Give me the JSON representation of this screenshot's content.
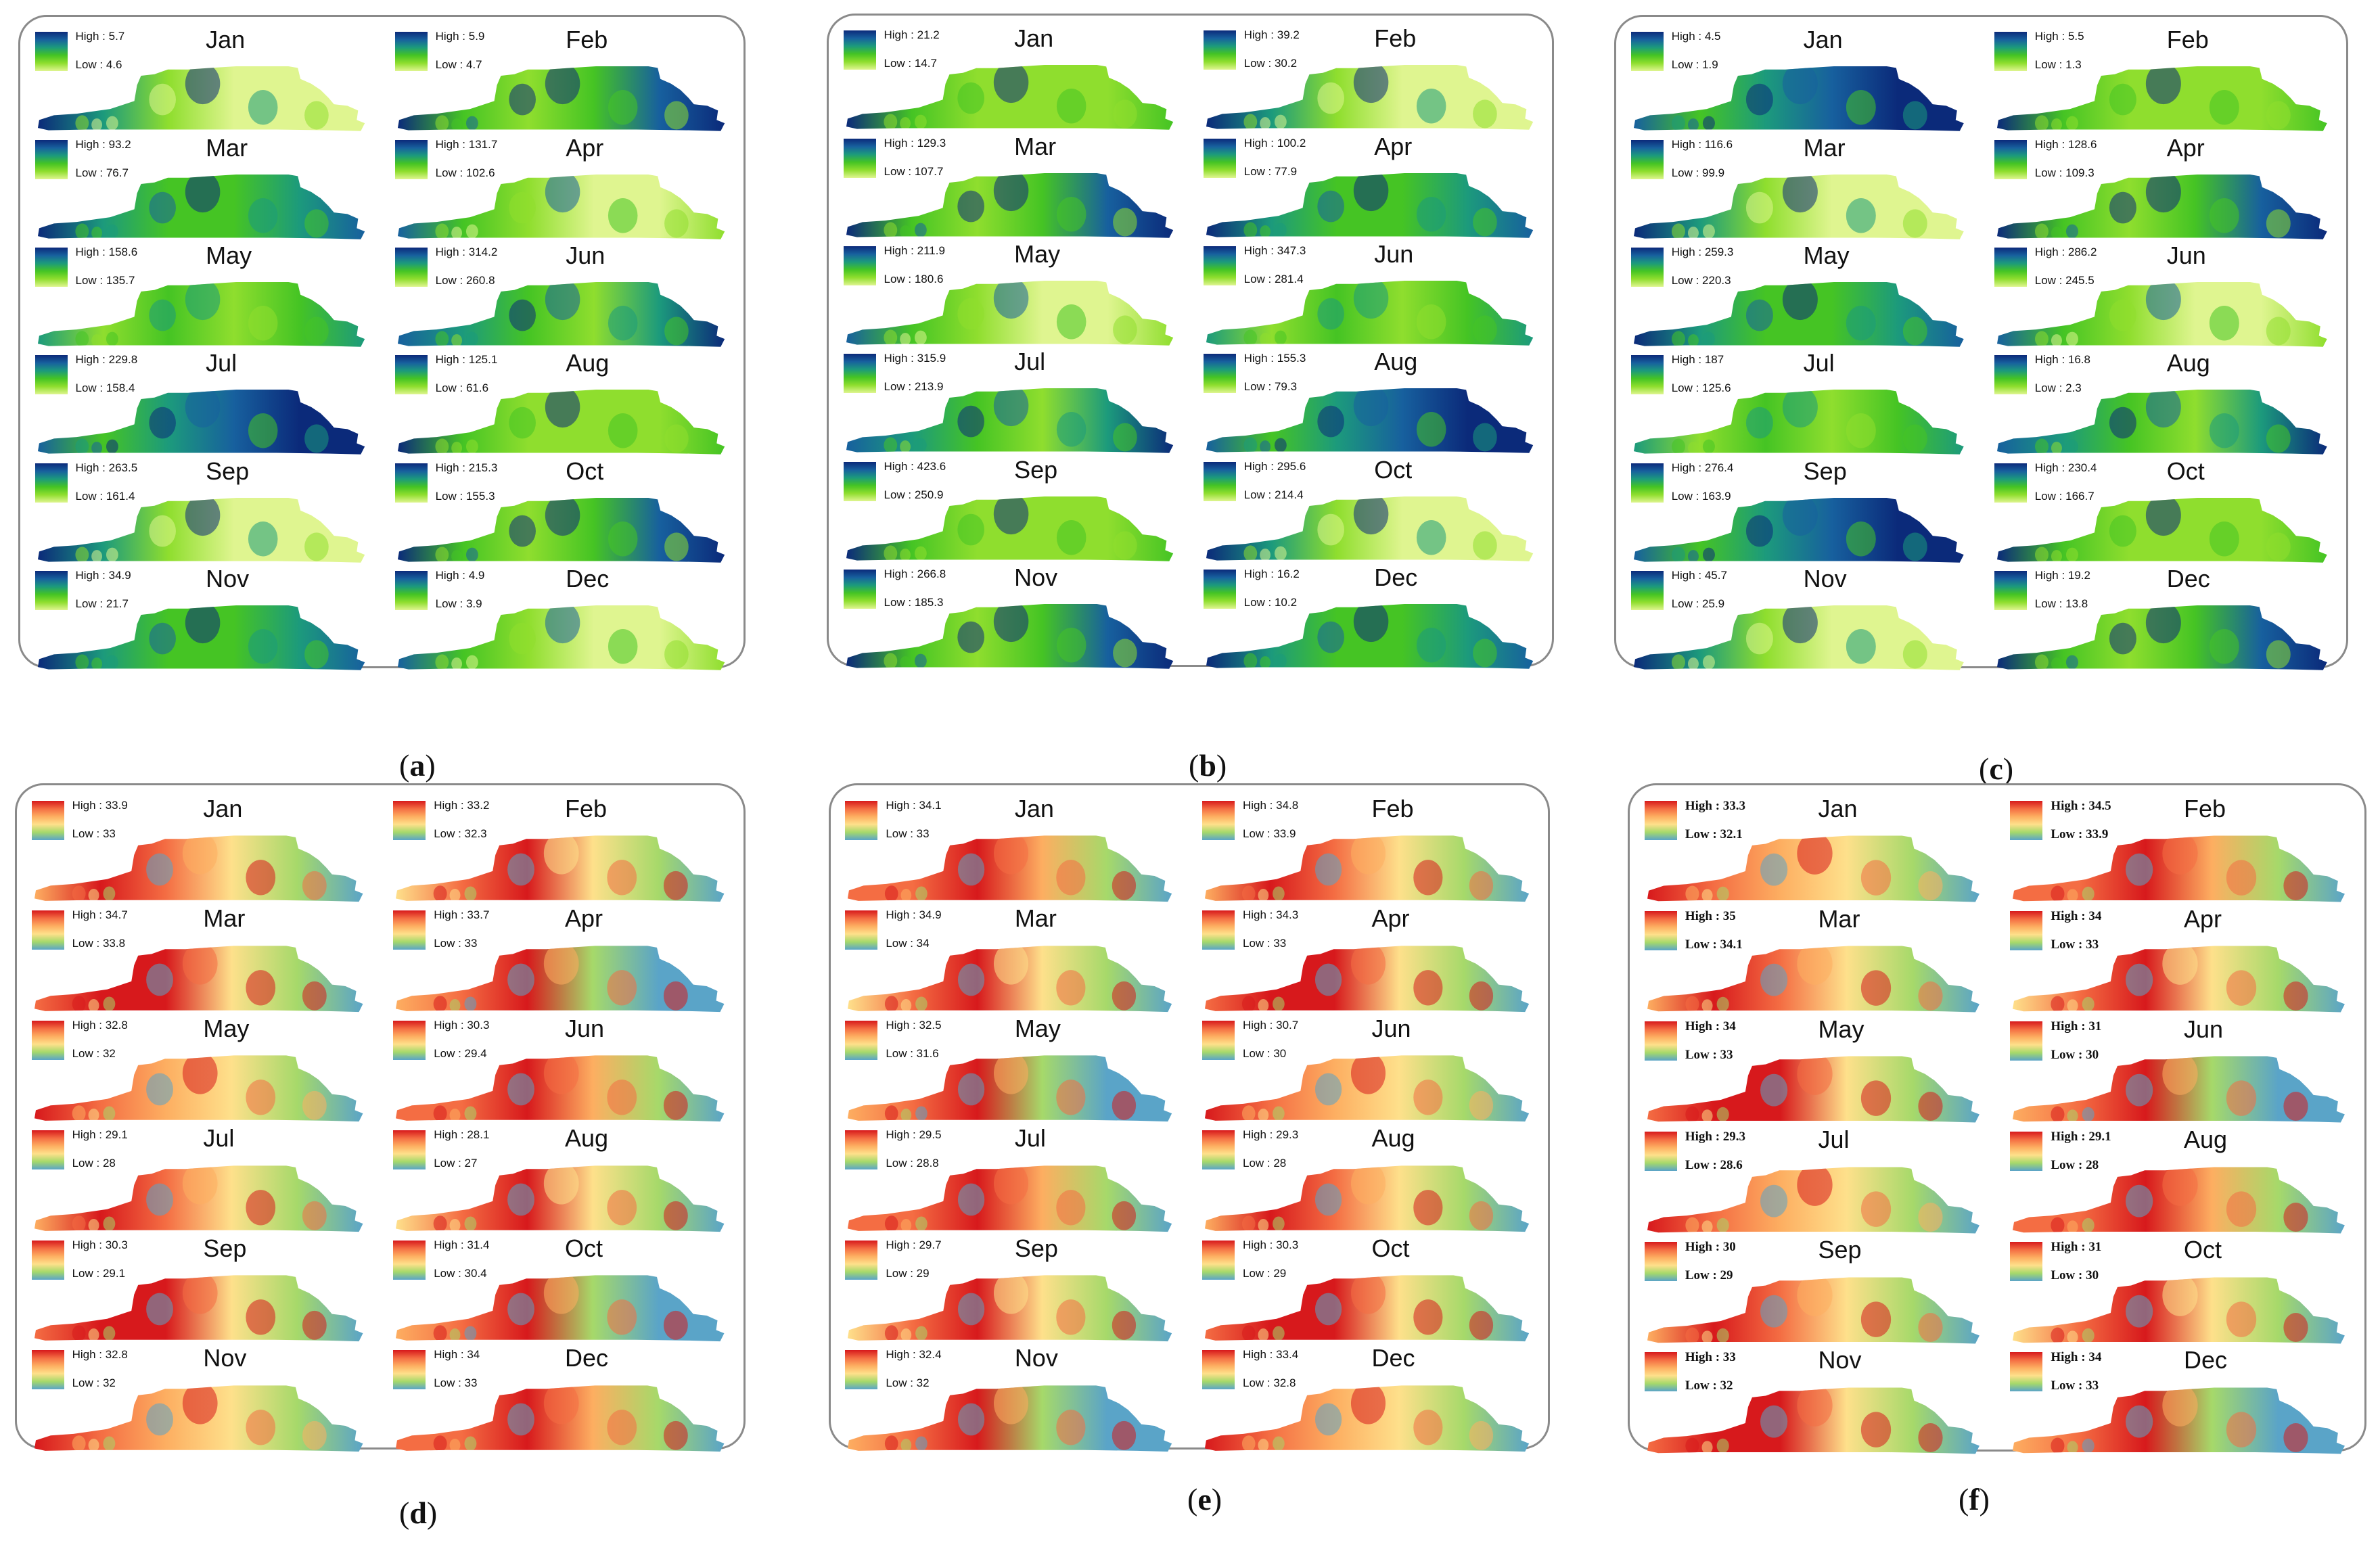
{
  "figure": {
    "panels": [
      {
        "label": "a",
        "caption_open": "(",
        "caption_close": ")",
        "ramp": "greenblue",
        "style": "sans",
        "months": [
          {
            "month": "Jan",
            "high": "High : 5.7",
            "low": "Low : 4.6"
          },
          {
            "month": "Feb",
            "high": "High : 5.9",
            "low": "Low : 4.7"
          },
          {
            "month": "Mar",
            "high": "High : 93.2",
            "low": "Low : 76.7"
          },
          {
            "month": "Apr",
            "high": "High : 131.7",
            "low": "Low : 102.6"
          },
          {
            "month": "May",
            "high": "High : 158.6",
            "low": "Low : 135.7"
          },
          {
            "month": "Jun",
            "high": "High : 314.2",
            "low": "Low : 260.8"
          },
          {
            "month": "Jul",
            "high": "High : 229.8",
            "low": "Low : 158.4"
          },
          {
            "month": "Aug",
            "high": "High : 125.1",
            "low": "Low : 61.6"
          },
          {
            "month": "Sep",
            "high": "High : 263.5",
            "low": "Low : 161.4"
          },
          {
            "month": "Oct",
            "high": "High : 215.3",
            "low": "Low : 155.3"
          },
          {
            "month": "Nov",
            "high": "High : 34.9",
            "low": "Low : 21.7"
          },
          {
            "month": "Dec",
            "high": "High : 4.9",
            "low": "Low : 3.9"
          }
        ]
      },
      {
        "label": "b",
        "caption_open": "(",
        "caption_close": ")",
        "ramp": "greenblue",
        "style": "sans",
        "months": [
          {
            "month": "Jan",
            "high": "High : 21.2",
            "low": "Low : 14.7"
          },
          {
            "month": "Feb",
            "high": "High : 39.2",
            "low": "Low : 30.2"
          },
          {
            "month": "Mar",
            "high": "High : 129.3",
            "low": "Low : 107.7"
          },
          {
            "month": "Apr",
            "high": "High : 100.2",
            "low": "Low : 77.9"
          },
          {
            "month": "May",
            "high": "High : 211.9",
            "low": "Low : 180.6"
          },
          {
            "month": "Jun",
            "high": "High : 347.3",
            "low": "Low : 281.4"
          },
          {
            "month": "Jul",
            "high": "High : 315.9",
            "low": "Low : 213.9"
          },
          {
            "month": "Aug",
            "high": "High : 155.3",
            "low": "Low : 79.3"
          },
          {
            "month": "Sep",
            "high": "High : 423.6",
            "low": "Low : 250.9"
          },
          {
            "month": "Oct",
            "high": "High : 295.6",
            "low": "Low : 214.4"
          },
          {
            "month": "Nov",
            "high": "High : 266.8",
            "low": "Low : 185.3"
          },
          {
            "month": "Dec",
            "high": "High : 16.2",
            "low": "Low : 10.2"
          }
        ]
      },
      {
        "label": "c",
        "caption_open": "(",
        "caption_close": ")",
        "ramp": "greenblue",
        "style": "sans",
        "months": [
          {
            "month": "Jan",
            "high": "High : 4.5",
            "low": "Low : 1.9"
          },
          {
            "month": "Feb",
            "high": "High : 5.5",
            "low": "Low : 1.3"
          },
          {
            "month": "Mar",
            "high": "High : 116.6",
            "low": "Low : 99.9"
          },
          {
            "month": "Apr",
            "high": "High : 128.6",
            "low": "Low : 109.3"
          },
          {
            "month": "May",
            "high": "High : 259.3",
            "low": "Low : 220.3"
          },
          {
            "month": "Jun",
            "high": "High : 286.2",
            "low": "Low : 245.5"
          },
          {
            "month": "Jul",
            "high": "High : 187",
            "low": "Low : 125.6"
          },
          {
            "month": "Aug",
            "high": "High : 16.8",
            "low": "Low : 2.3"
          },
          {
            "month": "Sep",
            "high": "High : 276.4",
            "low": "Low : 163.9"
          },
          {
            "month": "Oct",
            "high": "High : 230.4",
            "low": "Low : 166.7"
          },
          {
            "month": "Nov",
            "high": "High : 45.7",
            "low": "Low : 25.9"
          },
          {
            "month": "Dec",
            "high": "High : 19.2",
            "low": "Low : 13.8"
          }
        ]
      },
      {
        "label": "d",
        "caption_open": "(",
        "caption_close": ")",
        "ramp": "heat",
        "style": "sans",
        "months": [
          {
            "month": "Jan",
            "high": "High : 33.9",
            "low": "Low : 33"
          },
          {
            "month": "Feb",
            "high": "High : 33.2",
            "low": "Low : 32.3"
          },
          {
            "month": "Mar",
            "high": "High : 34.7",
            "low": "Low : 33.8"
          },
          {
            "month": "Apr",
            "high": "High : 33.7",
            "low": "Low : 33"
          },
          {
            "month": "May",
            "high": "High : 32.8",
            "low": "Low : 32"
          },
          {
            "month": "Jun",
            "high": "High : 30.3",
            "low": "Low : 29.4"
          },
          {
            "month": "Jul",
            "high": "High : 29.1",
            "low": "Low : 28"
          },
          {
            "month": "Aug",
            "high": "High : 28.1",
            "low": "Low : 27"
          },
          {
            "month": "Sep",
            "high": "High : 30.3",
            "low": "Low : 29.1"
          },
          {
            "month": "Oct",
            "high": "High : 31.4",
            "low": "Low : 30.4"
          },
          {
            "month": "Nov",
            "high": "High : 32.8",
            "low": "Low : 32"
          },
          {
            "month": "Dec",
            "high": "High : 34",
            "low": "Low : 33"
          }
        ]
      },
      {
        "label": "e",
        "caption_open": "(",
        "caption_close": ")",
        "ramp": "heat",
        "style": "sans",
        "months": [
          {
            "month": "Jan",
            "high": "High : 34.1",
            "low": "Low : 33"
          },
          {
            "month": "Feb",
            "high": "High : 34.8",
            "low": "Low : 33.9"
          },
          {
            "month": "Mar",
            "high": "High : 34.9",
            "low": "Low : 34"
          },
          {
            "month": "Apr",
            "high": "High : 34.3",
            "low": "Low : 33"
          },
          {
            "month": "May",
            "high": "High : 32.5",
            "low": "Low : 31.6"
          },
          {
            "month": "Jun",
            "high": "High : 30.7",
            "low": "Low : 30"
          },
          {
            "month": "Jul",
            "high": "High : 29.5",
            "low": "Low : 28.8"
          },
          {
            "month": "Aug",
            "high": "High : 29.3",
            "low": "Low : 28"
          },
          {
            "month": "Sep",
            "high": "High : 29.7",
            "low": "Low : 29"
          },
          {
            "month": "Oct",
            "high": "High : 30.3",
            "low": "Low : 29"
          },
          {
            "month": "Nov",
            "high": "High : 32.4",
            "low": "Low : 32"
          },
          {
            "month": "Dec",
            "high": "High : 33.4",
            "low": "Low : 32.8"
          }
        ]
      },
      {
        "label": "f",
        "caption_open": "(",
        "caption_close": ")",
        "ramp": "heat",
        "style": "serif",
        "months": [
          {
            "month": "Jan",
            "high": "High : 33.3",
            "low": "Low : 32.1"
          },
          {
            "month": "Feb",
            "high": "High : 34.5",
            "low": "Low : 33.9"
          },
          {
            "month": "Mar",
            "high": "High : 35",
            "low": "Low : 34.1"
          },
          {
            "month": "Apr",
            "high": "High : 34",
            "low": "Low : 33"
          },
          {
            "month": "May",
            "high": "High : 34",
            "low": "Low : 33"
          },
          {
            "month": "Jun",
            "high": "High : 31",
            "low": "Low : 30"
          },
          {
            "month": "Jul",
            "high": "High : 29.3",
            "low": "Low : 28.6"
          },
          {
            "month": "Aug",
            "high": "High : 29.1",
            "low": "Low : 28"
          },
          {
            "month": "Sep",
            "high": "High : 30",
            "low": "Low : 29"
          },
          {
            "month": "Oct",
            "high": "High : 31",
            "low": "Low : 30"
          },
          {
            "month": "Nov",
            "high": "High : 33",
            "low": "Low : 32"
          },
          {
            "month": "Dec",
            "high": "High : 34",
            "low": "Low : 33"
          }
        ]
      }
    ]
  },
  "colors": {
    "greenblue": [
      "#0b2a7a",
      "#17609e",
      "#1c9a7c",
      "#45c424",
      "#8fde2e",
      "#dff590"
    ],
    "heat": [
      "#d7191c",
      "#f46d43",
      "#fdae61",
      "#fee08b",
      "#a6d96a",
      "#5aa4c8"
    ],
    "panel_border": "#8a8a8a"
  }
}
